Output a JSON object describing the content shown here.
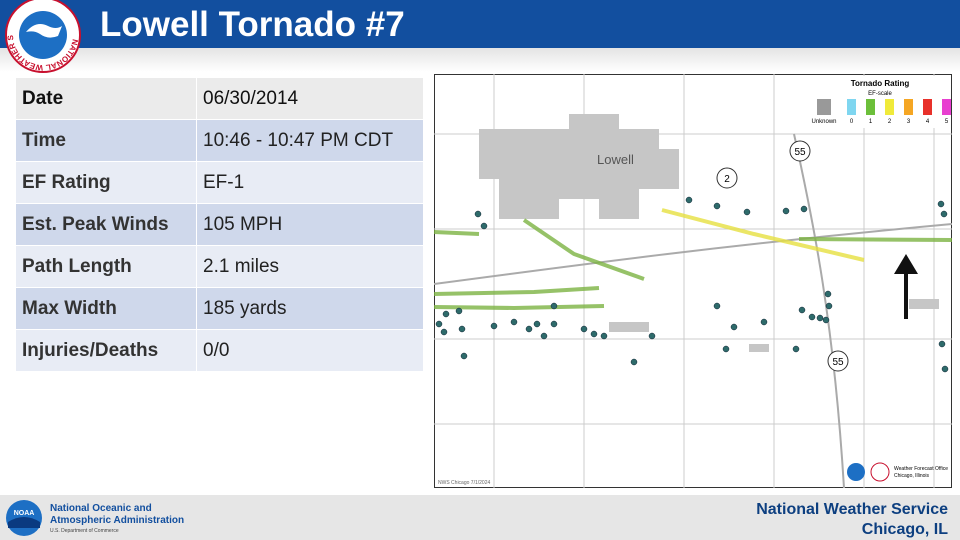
{
  "header": {
    "title": "Lowell Tornado #7",
    "logo_text": "NATIONAL WEATHER SERVICE"
  },
  "table": {
    "rows": [
      [
        "Date",
        "06/30/2014"
      ],
      [
        "Time",
        "10:46 - 10:47 PM CDT"
      ],
      [
        "EF Rating",
        "EF-1"
      ],
      [
        "Est. Peak Winds",
        "105 MPH"
      ],
      [
        "Path Length",
        "2.1 miles"
      ],
      [
        "Max Width",
        "185 yards"
      ],
      [
        "Injuries/Deaths",
        "0/0"
      ]
    ]
  },
  "map": {
    "town": "Lowell",
    "route_2": "2",
    "route_55": "55",
    "legend": {
      "title": "Tornado Rating",
      "subtitle": "EF-scale",
      "unknown": "Unknown",
      "ratings": [
        "0",
        "1",
        "2",
        "3",
        "4",
        "5"
      ]
    },
    "credit": "NWS Chicago 7/1/2024",
    "office": "Weather Forecast Office",
    "office_place": "Chicago, Illinois"
  },
  "footer": {
    "agency_line1": "National Oceanic and",
    "agency_line2": "Atmospheric Administration",
    "department": "U.S. Department of Commerce",
    "logo": "NOAA",
    "service": "National Weather Service",
    "place": "Chicago, IL"
  }
}
